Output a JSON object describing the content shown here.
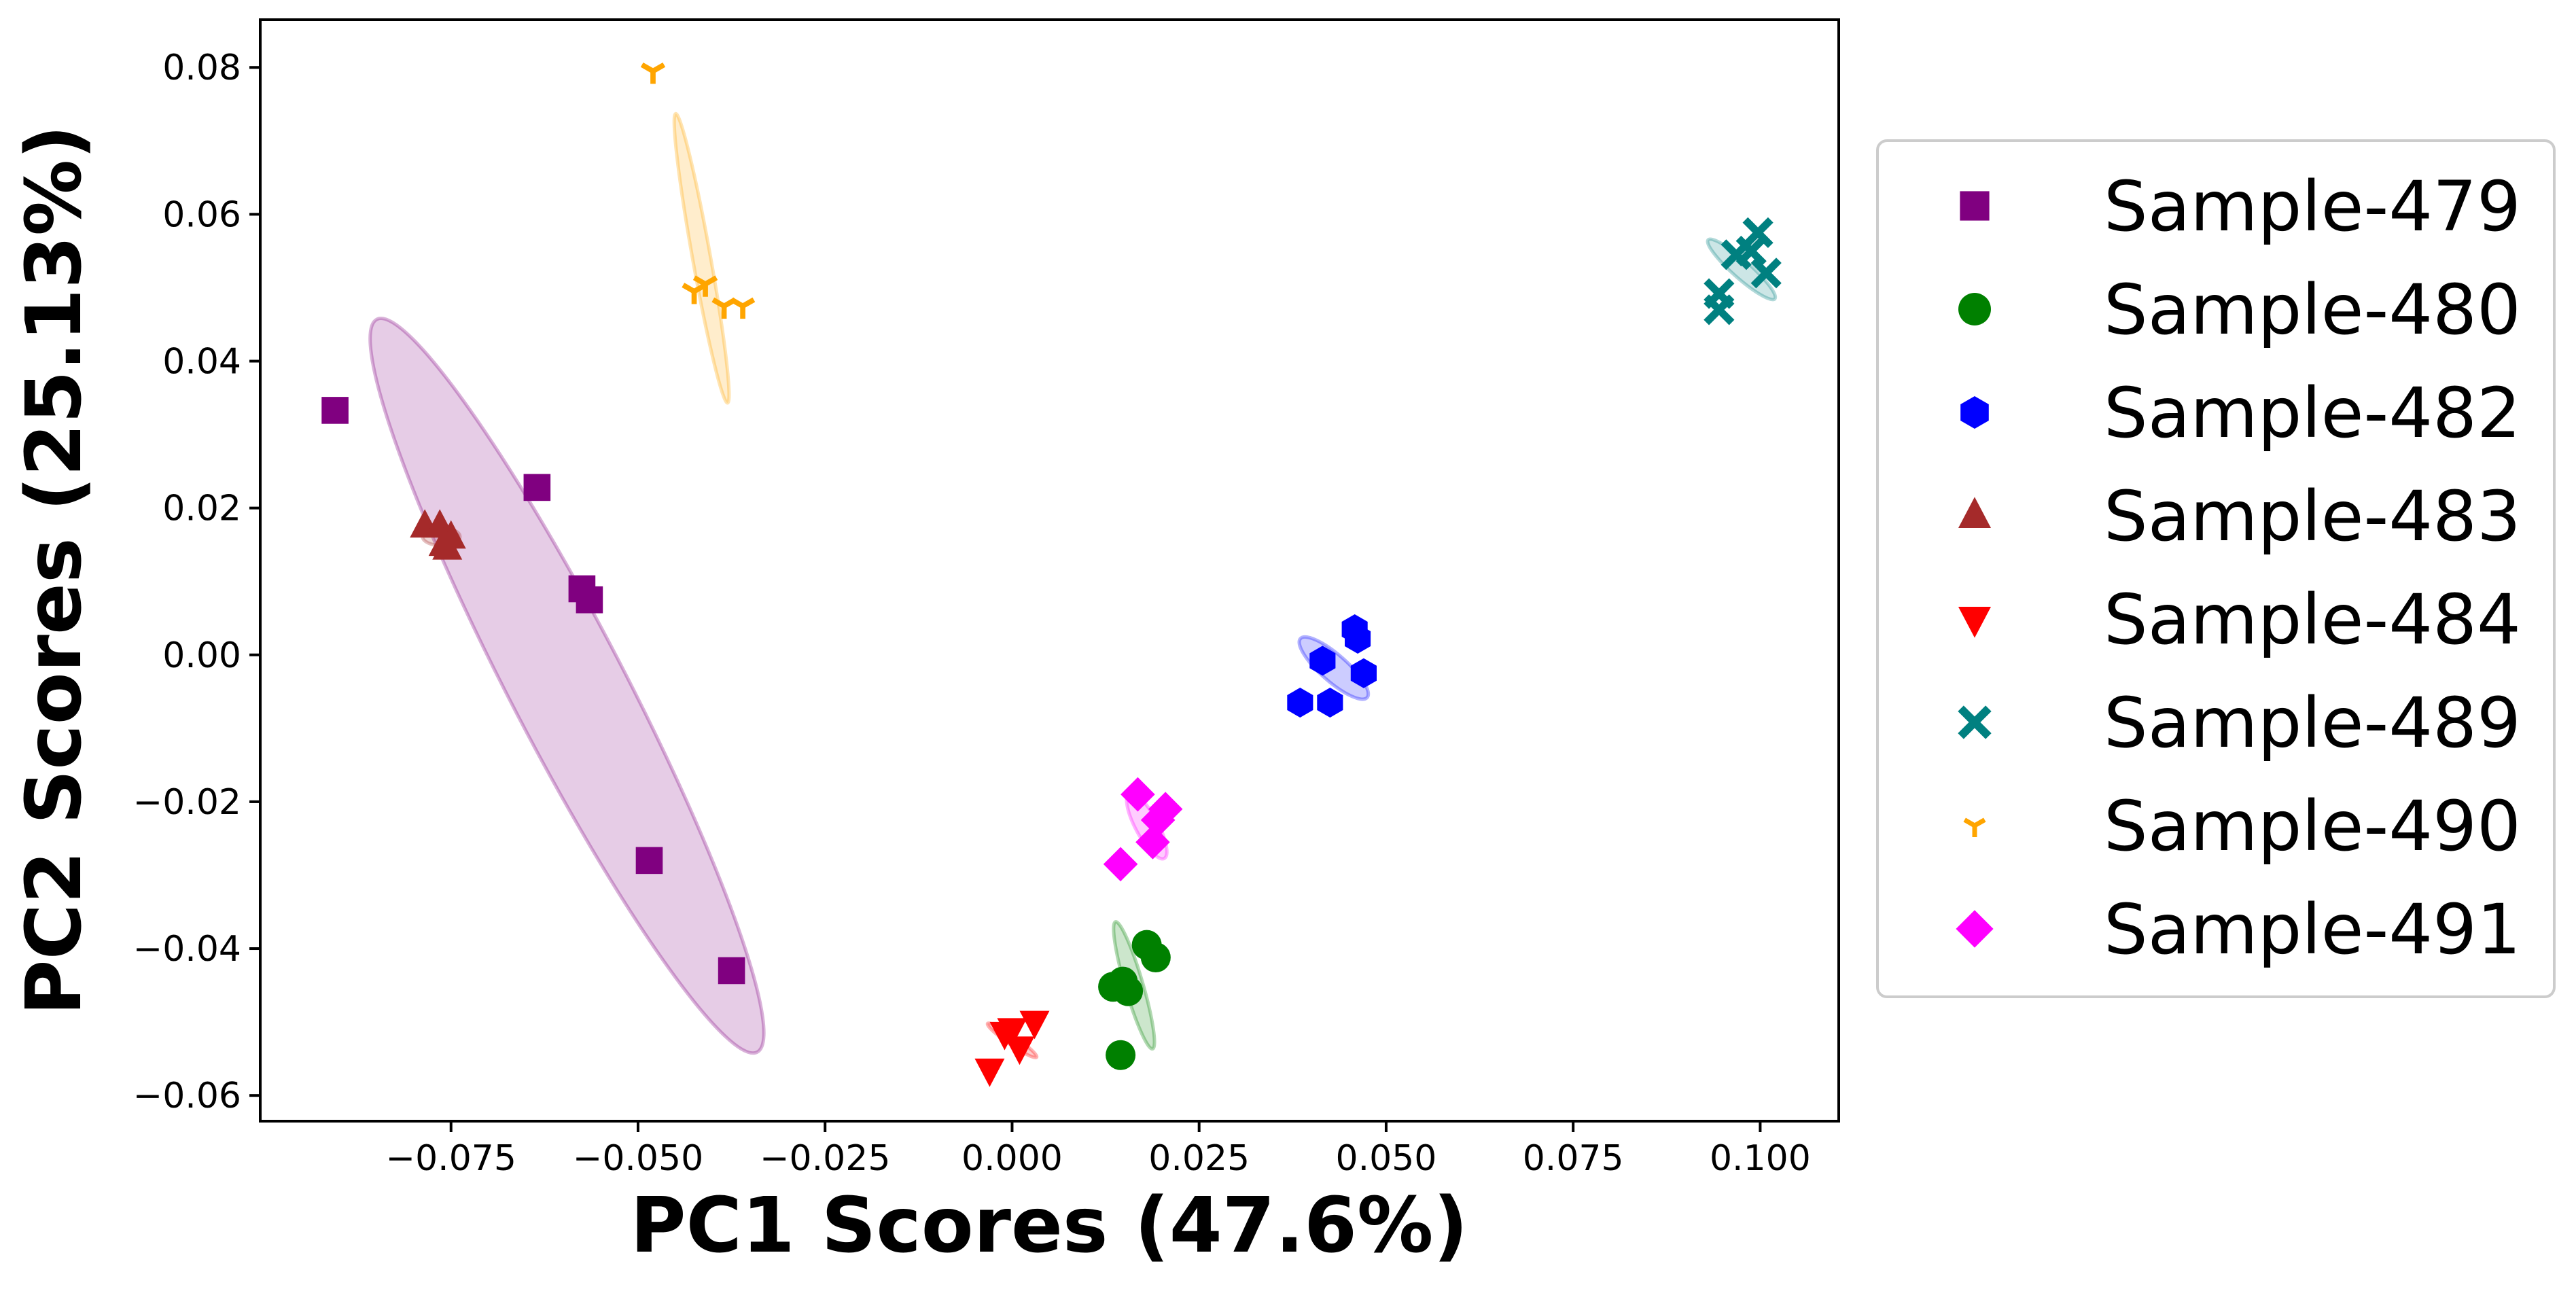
{
  "chart_data": {
    "type": "scatter",
    "title": "",
    "xlabel": "PC1 Scores (47.6%)",
    "ylabel": "PC2 Scores (25.13%)",
    "xlim": [
      -0.1005,
      0.1105
    ],
    "ylim": [
      -0.0635,
      0.0865
    ],
    "xticks": [
      -0.075,
      -0.05,
      -0.025,
      0.0,
      0.025,
      0.05,
      0.075,
      0.1
    ],
    "xtick_labels": [
      "−0.075",
      "−0.050",
      "−0.025",
      "0.000",
      "0.025",
      "0.050",
      "0.075",
      "0.100"
    ],
    "yticks": [
      -0.06,
      -0.04,
      -0.02,
      0.0,
      0.02,
      0.04,
      0.06,
      0.08
    ],
    "ytick_labels": [
      "−0.06",
      "−0.04",
      "−0.02",
      "0.00",
      "0.02",
      "0.04",
      "0.06",
      "0.08"
    ],
    "grid": false,
    "legend_position": "outside-right",
    "series": [
      {
        "name": "Sample-479",
        "color": "#800080",
        "marker": "square",
        "x": [
          -0.0905,
          -0.0635,
          -0.0575,
          -0.0565,
          -0.0485,
          -0.0375
        ],
        "y": [
          0.0333,
          0.0228,
          0.009,
          0.0075,
          -0.028,
          -0.043
        ],
        "ellipse": {
          "cx": -0.0595,
          "cy": -0.0042,
          "rx": 0.056,
          "ry": 0.0077,
          "angle_deg": -63
        }
      },
      {
        "name": "Sample-480",
        "color": "#008000",
        "marker": "circle",
        "x": [
          0.0135,
          0.0148,
          0.0155,
          0.018,
          0.0192,
          0.0145
        ],
        "y": [
          -0.0452,
          -0.0445,
          -0.0458,
          -0.0395,
          -0.0412,
          -0.0545
        ],
        "ellipse": {
          "cx": 0.0163,
          "cy": -0.045,
          "rx": 0.009,
          "ry": 0.0012,
          "angle_deg": -74
        }
      },
      {
        "name": "Sample-482",
        "color": "#0000ff",
        "marker": "hexagon",
        "x": [
          0.0385,
          0.0425,
          0.0415,
          0.0458,
          0.0462,
          0.047
        ],
        "y": [
          -0.0065,
          -0.0065,
          -0.0008,
          0.0035,
          0.0022,
          -0.0025
        ],
        "ellipse": {
          "cx": 0.043,
          "cy": -0.0018,
          "rx": 0.006,
          "ry": 0.0018,
          "angle_deg": -42
        }
      },
      {
        "name": "Sample-483",
        "color": "#a52a2a",
        "marker": "triangle-up",
        "x": [
          -0.0785,
          -0.0765,
          -0.075,
          -0.076,
          -0.0755
        ],
        "y": [
          0.0175,
          0.0175,
          0.016,
          0.015,
          0.0145
        ],
        "ellipse": {
          "cx": -0.0763,
          "cy": 0.0161,
          "rx": 0.0025,
          "ry": 0.0012,
          "angle_deg": 0
        }
      },
      {
        "name": "Sample-484",
        "color": "#ff0000",
        "marker": "triangle-down",
        "x": [
          -0.003,
          -0.001,
          0.0,
          0.001,
          0.003
        ],
        "y": [
          -0.0565,
          -0.0515,
          -0.051,
          -0.0535,
          -0.05
        ],
        "ellipse": {
          "cx": 0.0,
          "cy": -0.0525,
          "rx": 0.004,
          "ry": 0.0006,
          "angle_deg": -35
        }
      },
      {
        "name": "Sample-489",
        "color": "#008080",
        "marker": "x",
        "x": [
          0.0945,
          0.0945,
          0.0968,
          0.0988,
          0.0997,
          0.1008
        ],
        "y": [
          0.047,
          0.0492,
          0.0545,
          0.055,
          0.0575,
          0.052
        ],
        "ellipse": {
          "cx": 0.0975,
          "cy": 0.0525,
          "rx": 0.006,
          "ry": 0.0012,
          "angle_deg": -42
        }
      },
      {
        "name": "Sample-490",
        "color": "#ffa500",
        "marker": "tri-down",
        "x": [
          -0.048,
          -0.0425,
          -0.041,
          -0.0385,
          -0.036
        ],
        "y": [
          0.0795,
          0.0495,
          0.0505,
          0.0475,
          0.0475
        ],
        "ellipse": {
          "cx": -0.0415,
          "cy": 0.054,
          "rx": 0.02,
          "ry": 0.0012,
          "angle_deg": -80
        }
      },
      {
        "name": "Sample-491",
        "color": "#ff00ff",
        "marker": "diamond",
        "x": [
          0.0145,
          0.0168,
          0.0188,
          0.0205,
          0.0195
        ],
        "y": [
          -0.0285,
          -0.019,
          -0.0255,
          -0.021,
          -0.0225
        ],
        "ellipse": {
          "cx": 0.018,
          "cy": -0.0233,
          "rx": 0.005,
          "ry": 0.0015,
          "angle_deg": -62
        }
      }
    ]
  }
}
